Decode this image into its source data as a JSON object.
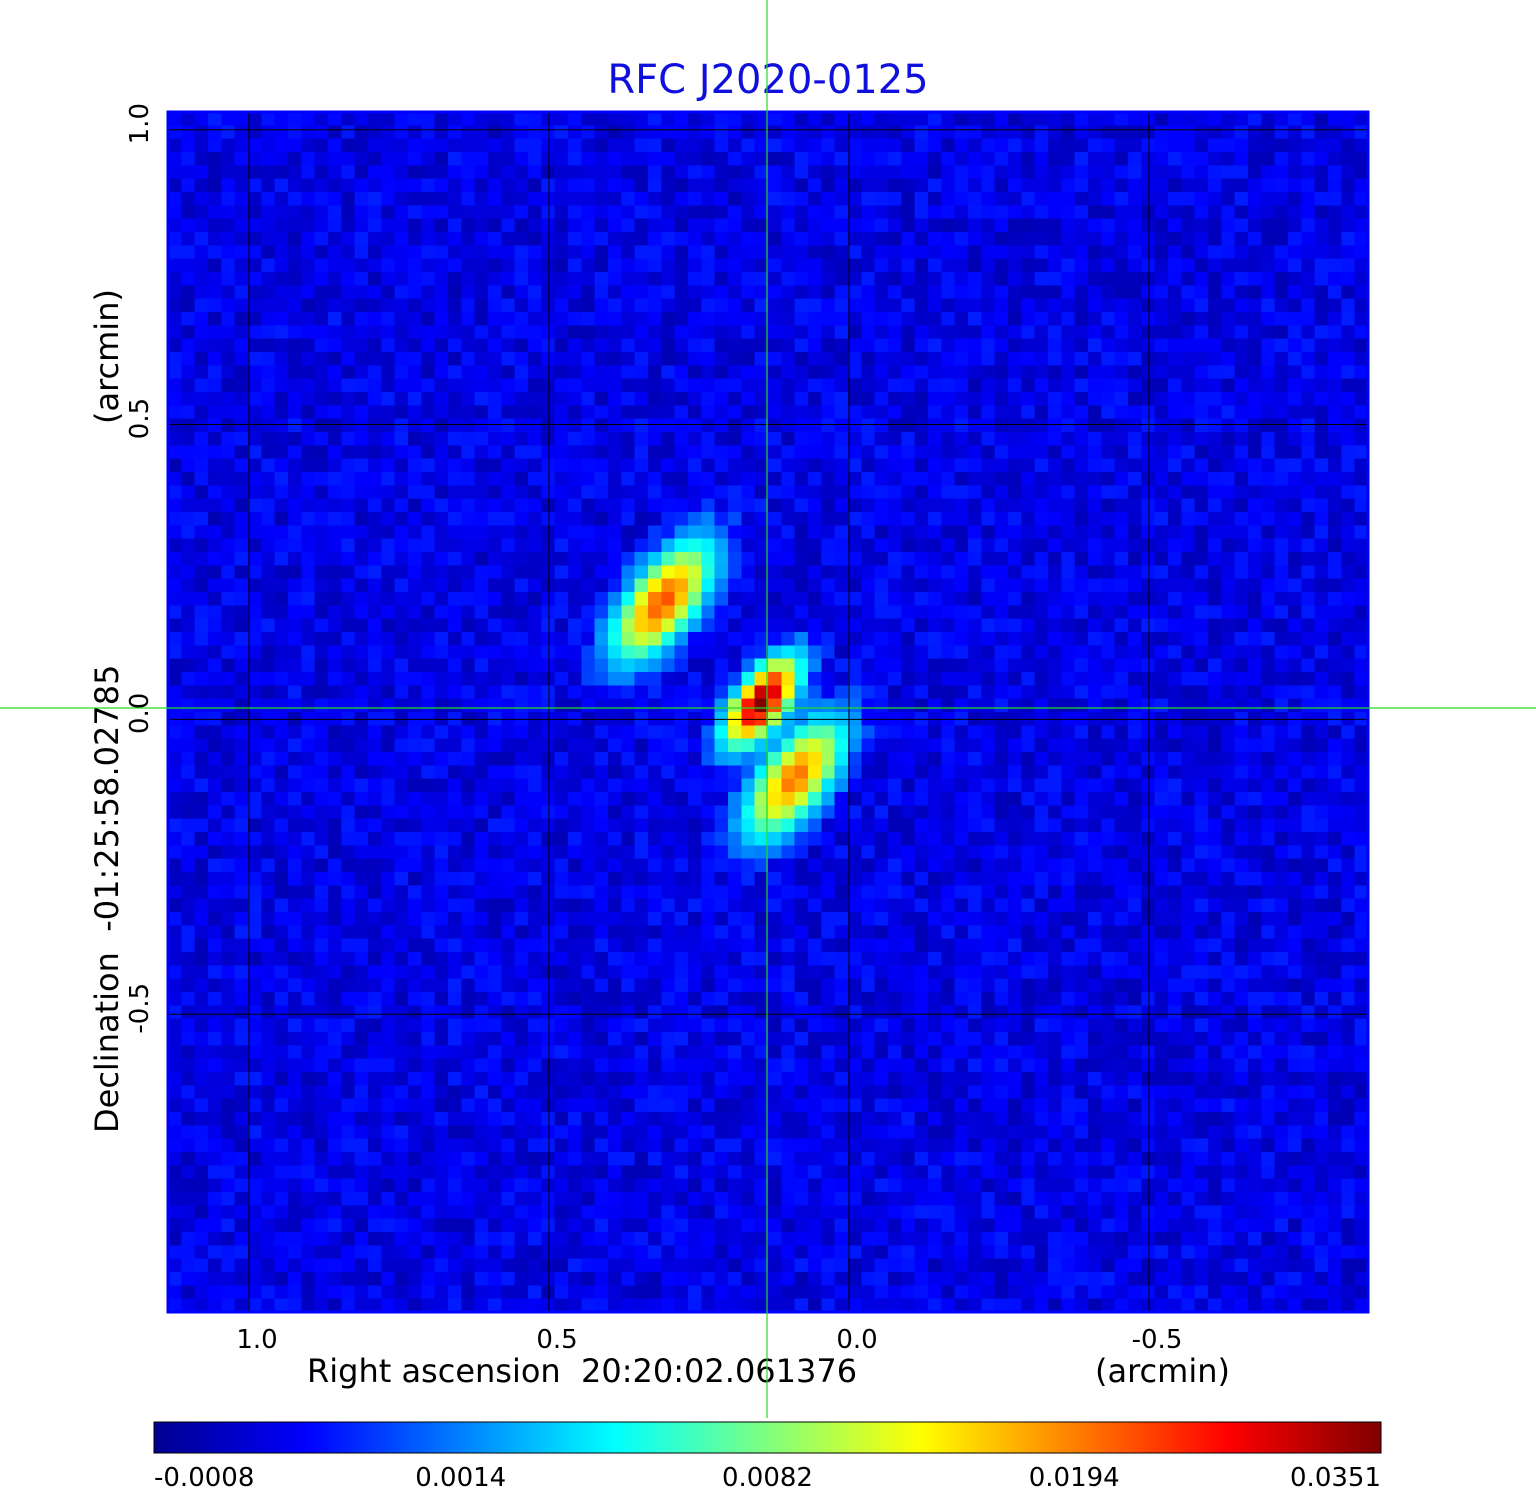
{
  "chart_data": {
    "type": "heatmap",
    "title": "RFC J2020-0125",
    "xlabel": "Right ascension  20:20:02.061376",
    "xunit": "(arcmin)",
    "ylabel": "Declination  -01:25:58.02785",
    "yunit": "(arcmin)",
    "xlim": [
      1.135,
      -0.865
    ],
    "ylim": [
      -1.005,
      1.03
    ],
    "x_ticks": [
      1.0,
      0.5,
      0.0,
      -0.5
    ],
    "x_tick_labels": [
      "1.0",
      "0.5",
      "0.0",
      "-0.5"
    ],
    "y_ticks": [
      1.0,
      0.5,
      0.0,
      -0.5
    ],
    "y_tick_labels": [
      "1.0",
      "0.5",
      "0.0",
      "-0.5"
    ],
    "grid": true,
    "crosshair": {
      "x": 0.135,
      "y": 0.03,
      "color": "#22dd22"
    },
    "colormap": "jet",
    "colorbar": {
      "location": "bottom",
      "tick_labels": [
        "-0.0008",
        "0.0014",
        "0.0082",
        "0.0194",
        "0.0351"
      ],
      "range": [
        -0.0008,
        0.0351
      ]
    },
    "components": [
      {
        "x": 0.145,
        "y": 0.03,
        "peak": 0.0351
      },
      {
        "x": 0.31,
        "y": 0.2,
        "peak": 0.022
      },
      {
        "x": 0.09,
        "y": -0.1,
        "peak": 0.02
      }
    ],
    "background_level": 0.0001
  }
}
